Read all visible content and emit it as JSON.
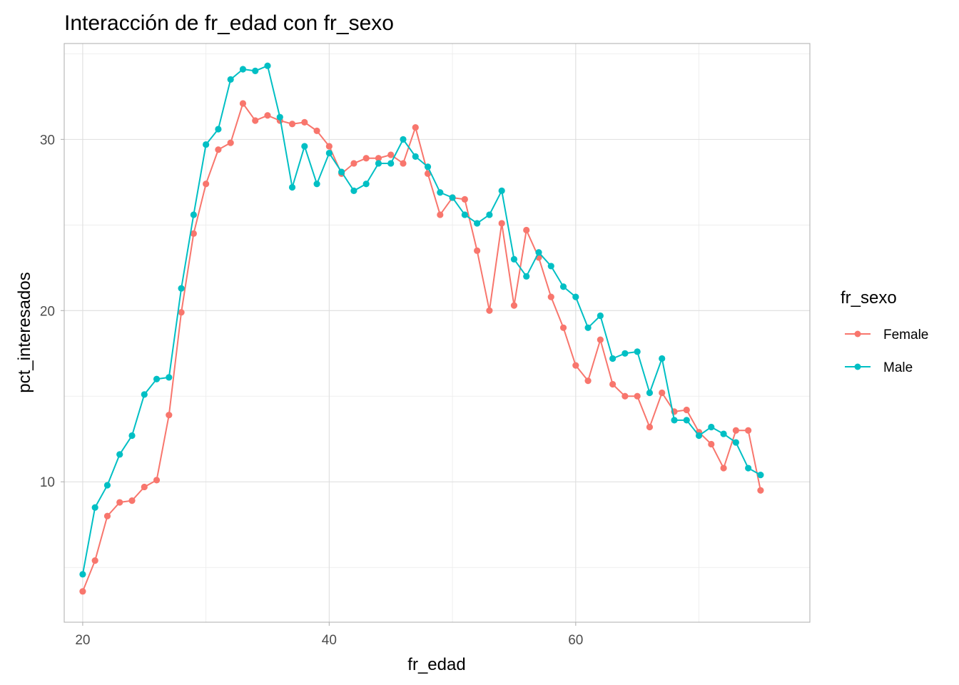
{
  "chart_data": {
    "type": "line",
    "title": "Interacción de fr_edad con fr_sexo",
    "xlabel": "fr_edad",
    "ylabel": "pct_interesados",
    "xlim": [
      18.5,
      79
    ],
    "ylim": [
      1.8,
      35.6
    ],
    "x_ticks": [
      20,
      40,
      60
    ],
    "x_tick_labels": [
      "20",
      "40",
      "60"
    ],
    "y_ticks": [
      10,
      20,
      30
    ],
    "y_tick_labels": [
      "10",
      "20",
      "30"
    ],
    "grid": true,
    "legend": {
      "title": "fr_sexo",
      "position": "right"
    },
    "x": [
      20,
      21,
      22,
      23,
      24,
      25,
      26,
      27,
      28,
      29,
      30,
      31,
      32,
      33,
      34,
      35,
      36,
      37,
      38,
      39,
      40,
      41,
      42,
      43,
      44,
      45,
      46,
      47,
      48,
      49,
      50,
      51,
      52,
      53,
      54,
      55,
      56,
      57,
      58,
      59,
      60,
      61,
      62,
      63,
      64,
      65,
      66,
      67,
      68,
      69,
      70,
      71,
      72,
      73,
      74,
      75
    ],
    "series": [
      {
        "name": "Female",
        "color": "#F8766D",
        "values": [
          3.6,
          5.4,
          8.0,
          8.8,
          8.9,
          9.7,
          10.1,
          13.9,
          19.9,
          24.5,
          27.4,
          29.4,
          29.8,
          32.1,
          31.1,
          31.4,
          31.1,
          30.9,
          31.0,
          30.5,
          29.6,
          28.0,
          28.6,
          28.9,
          28.9,
          29.1,
          28.6,
          30.7,
          28.0,
          25.6,
          26.6,
          26.5,
          23.5,
          20.0,
          25.1,
          20.3,
          24.7,
          23.1,
          20.8,
          19.0,
          16.8,
          15.9,
          18.3,
          15.7,
          15.0,
          15.0,
          13.2,
          15.2,
          14.1,
          14.2,
          12.9,
          12.2,
          10.8,
          13.0,
          13.0,
          9.5
        ]
      },
      {
        "name": "Male",
        "color": "#00BFC4",
        "values": [
          4.6,
          8.5,
          9.8,
          11.6,
          12.7,
          15.1,
          16.0,
          16.1,
          21.3,
          25.6,
          29.7,
          30.6,
          33.5,
          34.1,
          34.0,
          34.3,
          31.3,
          27.2,
          29.6,
          27.4,
          29.2,
          28.1,
          27.0,
          27.4,
          28.6,
          28.6,
          30.0,
          29.0,
          28.4,
          26.9,
          26.6,
          25.6,
          25.1,
          25.6,
          27.0,
          23.0,
          22.0,
          23.4,
          22.6,
          21.4,
          20.8,
          19.0,
          19.7,
          17.2,
          17.5,
          17.6,
          15.2,
          17.2,
          13.6,
          13.6,
          12.7,
          13.2,
          12.8,
          12.3,
          10.8,
          10.4
        ]
      }
    ]
  }
}
